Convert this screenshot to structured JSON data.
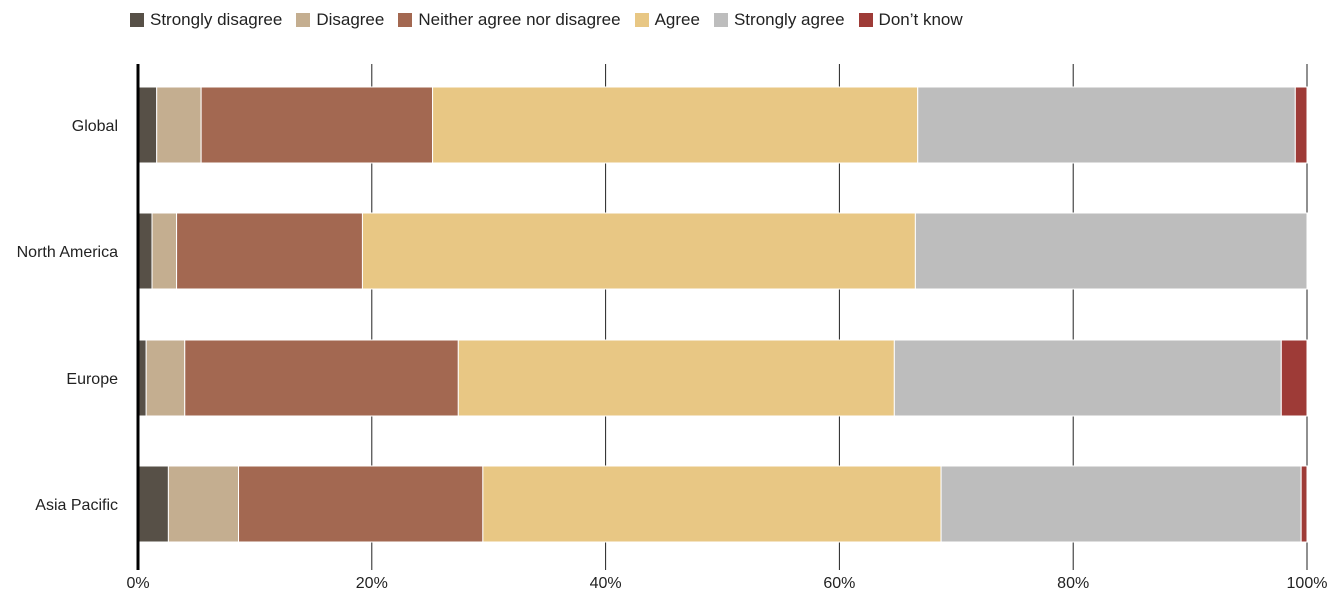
{
  "chart_data": {
    "type": "bar",
    "orientation": "horizontal",
    "stacked": true,
    "percent_stacked": true,
    "categories": [
      "Global",
      "North America",
      "Europe",
      "Asia Pacific"
    ],
    "series": [
      {
        "name": "Strongly disagree",
        "color": "#575047",
        "values": [
          1.6,
          1.2,
          0.7,
          2.6
        ]
      },
      {
        "name": "Disagree",
        "color": "#c4ae90",
        "values": [
          3.8,
          2.1,
          3.3,
          6.0
        ]
      },
      {
        "name": "Neither agree nor disagree",
        "color": "#a36851",
        "values": [
          19.8,
          15.9,
          23.4,
          20.9
        ]
      },
      {
        "name": "Agree",
        "color": "#e8c784",
        "values": [
          41.5,
          47.3,
          37.3,
          39.2
        ]
      },
      {
        "name": "Strongly agree",
        "color": "#bdbdbd",
        "values": [
          32.3,
          33.5,
          33.1,
          30.8
        ]
      },
      {
        "name": "Don’t know",
        "color": "#9e3b37",
        "values": [
          1.0,
          0.0,
          2.2,
          0.5
        ]
      }
    ],
    "x_ticks": [
      "0%",
      "20%",
      "40%",
      "60%",
      "80%",
      "100%"
    ],
    "xlim": [
      0,
      100
    ],
    "xlabel": "",
    "ylabel": "",
    "grid": "vertical",
    "legend_position": "top-left"
  }
}
